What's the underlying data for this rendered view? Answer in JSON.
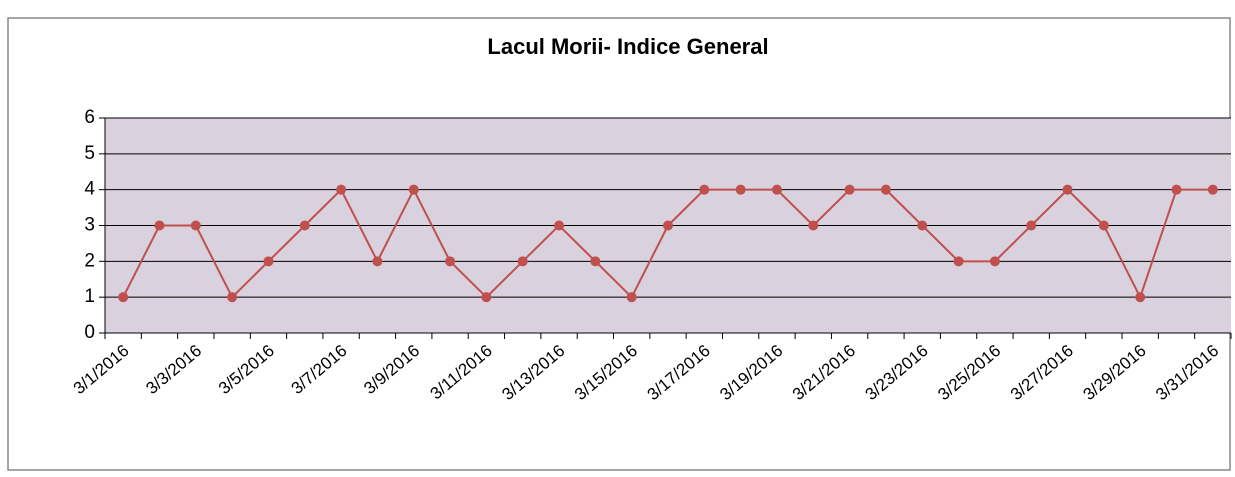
{
  "chart_data": {
    "type": "line",
    "title": "Lacul Morii- Indice General",
    "categories": [
      "3/1/2016",
      null,
      "3/3/2016",
      null,
      "3/5/2016",
      null,
      "3/7/2016",
      null,
      "3/9/2016",
      null,
      "3/11/2016",
      null,
      "3/13/2016",
      null,
      "3/15/2016",
      null,
      "3/17/2016",
      null,
      "3/19/2016",
      null,
      "3/21/2016",
      null,
      "3/23/2016",
      null,
      "3/25/2016",
      null,
      "3/27/2016",
      null,
      "3/29/2016",
      null,
      "3/31/2016"
    ],
    "values": [
      1,
      3,
      3,
      1,
      2,
      3,
      4,
      2,
      4,
      2,
      1,
      2,
      3,
      2,
      1,
      3,
      4,
      4,
      4,
      3,
      4,
      4,
      3,
      2,
      2,
      3,
      4,
      3,
      1,
      4,
      4
    ],
    "color": "#c0504d",
    "ylim": [
      0,
      6
    ],
    "yticks": [
      0,
      1,
      2,
      3,
      4,
      5,
      6
    ],
    "grid": true
  }
}
